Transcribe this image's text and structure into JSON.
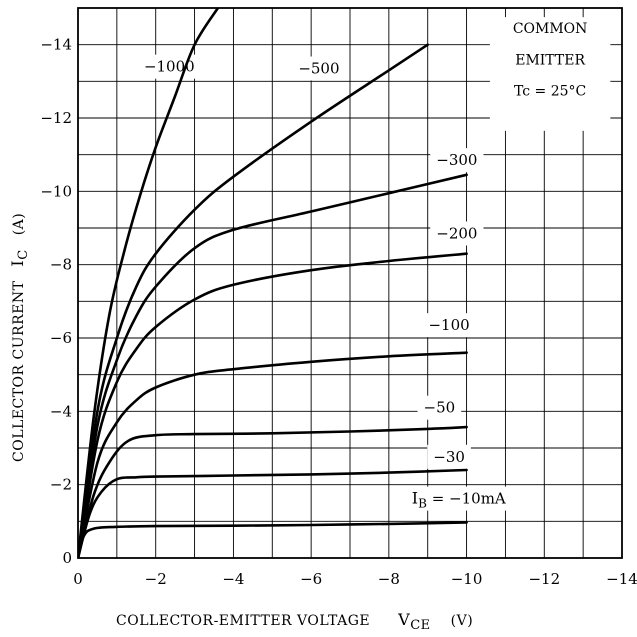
{
  "chart_data": {
    "type": "line",
    "xlabel": "COLLECTOR-EMITTER VOLTAGE",
    "xlabel_symbol": "V",
    "xlabel_sub": "CE",
    "xlabel_unit": "(V)",
    "ylabel": "COLLECTOR CURRENT",
    "ylabel_symbol": "I",
    "ylabel_sub": "C",
    "ylabel_unit": "(A)",
    "xlim": [
      0,
      -14
    ],
    "ylim": [
      0,
      -15
    ],
    "x_ticks": [
      0,
      -2,
      -4,
      -6,
      -8,
      -10,
      -12,
      -14
    ],
    "x_tick_labels": [
      "0",
      "−2",
      "−4",
      "−6",
      "−8",
      "−10",
      "−12",
      "−14"
    ],
    "y_ticks": [
      0,
      -2,
      -4,
      -6,
      -8,
      -10,
      -12,
      -14
    ],
    "y_tick_labels": [
      "0",
      "−2",
      "−4",
      "−6",
      "−8",
      "−10",
      "−12",
      "−14"
    ],
    "grid": true,
    "note_lines": [
      "COMMON",
      "EMITTER",
      "Tc = 25°C"
    ],
    "series": [
      {
        "label": "IB = −10mA",
        "label_parts": [
          "I",
          "B",
          " = −10mA"
        ],
        "label_at": [
          -9.8,
          -1.62
        ],
        "points": [
          [
            0,
            0
          ],
          [
            -0.15,
            -0.6
          ],
          [
            -0.4,
            -0.8
          ],
          [
            -1,
            -0.85
          ],
          [
            -2,
            -0.87
          ],
          [
            -4,
            -0.88
          ],
          [
            -6,
            -0.9
          ],
          [
            -8,
            -0.93
          ],
          [
            -10,
            -0.97
          ]
        ]
      },
      {
        "label": "−30",
        "label_at": [
          -9.55,
          -2.76
        ],
        "points": [
          [
            0,
            0
          ],
          [
            -0.3,
            -1.2
          ],
          [
            -0.6,
            -1.8
          ],
          [
            -1,
            -2.15
          ],
          [
            -1.5,
            -2.2
          ],
          [
            -2,
            -2.22
          ],
          [
            -4,
            -2.25
          ],
          [
            -6,
            -2.28
          ],
          [
            -8,
            -2.33
          ],
          [
            -10,
            -2.4
          ]
        ]
      },
      {
        "label": "−50",
        "label_at": [
          -9.3,
          -4.1
        ],
        "points": [
          [
            0,
            0
          ],
          [
            -0.4,
            -1.7
          ],
          [
            -0.8,
            -2.6
          ],
          [
            -1.3,
            -3.2
          ],
          [
            -2,
            -3.35
          ],
          [
            -3,
            -3.38
          ],
          [
            -5,
            -3.4
          ],
          [
            -7,
            -3.45
          ],
          [
            -9,
            -3.52
          ],
          [
            -10,
            -3.57
          ]
        ]
      },
      {
        "label": "−100",
        "label_at": [
          -9.55,
          -6.35
        ],
        "points": [
          [
            0,
            0
          ],
          [
            -0.5,
            -2.6
          ],
          [
            -1,
            -3.7
          ],
          [
            -1.5,
            -4.3
          ],
          [
            -2,
            -4.65
          ],
          [
            -3,
            -5.0
          ],
          [
            -4,
            -5.15
          ],
          [
            -6,
            -5.35
          ],
          [
            -8,
            -5.5
          ],
          [
            -10,
            -5.6
          ]
        ]
      },
      {
        "label": "−200",
        "label_at": [
          -9.75,
          -8.85
        ],
        "points": [
          [
            0,
            0
          ],
          [
            -0.5,
            -3.2
          ],
          [
            -1,
            -4.8
          ],
          [
            -1.5,
            -5.7
          ],
          [
            -2,
            -6.3
          ],
          [
            -3,
            -7.05
          ],
          [
            -4,
            -7.45
          ],
          [
            -6,
            -7.85
          ],
          [
            -8,
            -8.1
          ],
          [
            -10,
            -8.3
          ]
        ]
      },
      {
        "label": "−300",
        "label_at": [
          -9.75,
          -10.85
        ],
        "points": [
          [
            0,
            0
          ],
          [
            -0.5,
            -3.6
          ],
          [
            -1,
            -5.4
          ],
          [
            -1.5,
            -6.6
          ],
          [
            -2,
            -7.4
          ],
          [
            -3,
            -8.45
          ],
          [
            -4,
            -8.95
          ],
          [
            -6,
            -9.45
          ],
          [
            -8,
            -9.95
          ],
          [
            -10,
            -10.45
          ]
        ]
      },
      {
        "label": "−500",
        "label_at": [
          -6.2,
          -13.35
        ],
        "points": [
          [
            0,
            0
          ],
          [
            -0.5,
            -4.0
          ],
          [
            -1,
            -6.0
          ],
          [
            -1.5,
            -7.4
          ],
          [
            -2,
            -8.3
          ],
          [
            -3,
            -9.5
          ],
          [
            -4,
            -10.4
          ],
          [
            -6,
            -11.9
          ],
          [
            -8,
            -13.3
          ],
          [
            -9,
            -14.0
          ]
        ]
      },
      {
        "label": "−1000",
        "label_at": [
          -2.35,
          -13.4
        ],
        "points": [
          [
            0,
            0
          ],
          [
            -0.4,
            -3.8
          ],
          [
            -0.8,
            -6.6
          ],
          [
            -1.2,
            -8.4
          ],
          [
            -1.6,
            -9.9
          ],
          [
            -2,
            -11.2
          ],
          [
            -2.5,
            -12.6
          ],
          [
            -3,
            -14.0
          ],
          [
            -3.6,
            -15.0
          ]
        ]
      }
    ]
  }
}
